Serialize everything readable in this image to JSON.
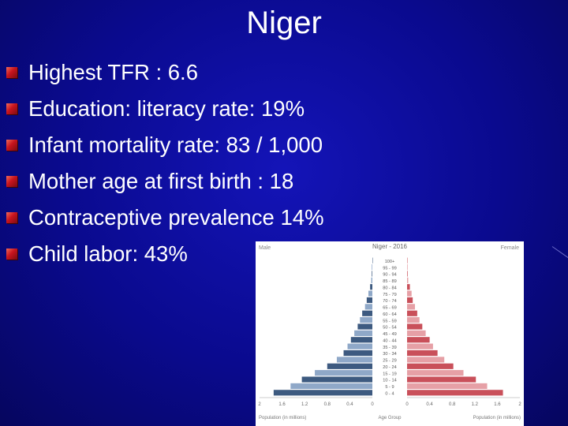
{
  "slide": {
    "title": "Niger",
    "bullets": [
      "Highest TFR : 6.6",
      "Education:  literacy rate: 19%",
      "Infant mortality rate: 83 / 1,000",
      "Mother age at first birth : 18",
      "Contraceptive prevalence 14%",
      "Child labor: 43%"
    ],
    "colors": {
      "background": "#0c0c96",
      "text": "#ffffff",
      "bullet": "#c8141e"
    }
  },
  "chart_data": {
    "type": "bar",
    "orientation": "horizontal-pyramid",
    "title": "Niger - 2016",
    "left_label": "Male",
    "right_label": "Female",
    "center_label": "Age Group",
    "xlabel_left": "Population (in millions)",
    "xlabel_right": "Population (in millions)",
    "categories": [
      "0 - 4",
      "5 - 9",
      "10 - 14",
      "15 - 19",
      "20 - 24",
      "25 - 29",
      "30 - 34",
      "35 - 39",
      "40 - 44",
      "45 - 49",
      "50 - 54",
      "55 - 59",
      "60 - 64",
      "65 - 69",
      "70 - 74",
      "75 - 79",
      "80 - 84",
      "85 - 89",
      "90 - 94",
      "95 - 99",
      "100+"
    ],
    "series": [
      {
        "name": "Male",
        "color": "#3d5a80",
        "values": [
          1.75,
          1.45,
          1.25,
          1.02,
          0.8,
          0.63,
          0.51,
          0.44,
          0.38,
          0.32,
          0.26,
          0.22,
          0.18,
          0.13,
          0.1,
          0.07,
          0.04,
          0.02,
          0.01,
          0.01,
          0.0
        ]
      },
      {
        "name": "Female",
        "color": "#c9505a",
        "values": [
          1.7,
          1.42,
          1.22,
          1.0,
          0.82,
          0.66,
          0.54,
          0.46,
          0.4,
          0.33,
          0.27,
          0.22,
          0.18,
          0.14,
          0.1,
          0.08,
          0.05,
          0.02,
          0.01,
          0.01,
          0.0
        ]
      }
    ],
    "xticks_left": [
      "2",
      "1.6",
      "1.2",
      "0.8",
      "0.4",
      "0"
    ],
    "xticks_right": [
      "0",
      "0.4",
      "0.8",
      "1.2",
      "1.6",
      "2"
    ],
    "xlim": [
      0,
      2
    ]
  }
}
